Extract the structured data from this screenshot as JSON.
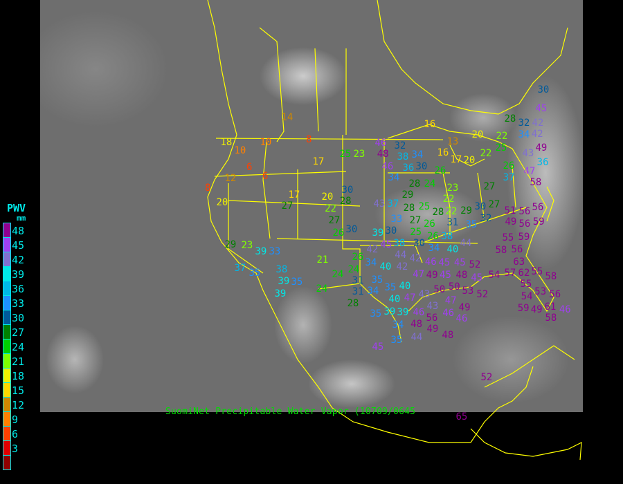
{
  "legend": {
    "title": "PWV",
    "unit": "mm",
    "labels": [
      "48",
      "45",
      "42",
      "39",
      "36",
      "33",
      "30",
      "27",
      "24",
      "21",
      "18",
      "15",
      "12",
      "9",
      "6",
      "3"
    ],
    "colors": [
      "#900090",
      "#a040f0",
      "#8070d0",
      "#00e8e8",
      "#00b8e8",
      "#1e90ff",
      "#005a9a",
      "#008000",
      "#00d000",
      "#80ff00",
      "#f0f000",
      "#ffd700",
      "#d08800",
      "#ff8000",
      "#ff4000",
      "#e00000",
      "#900000"
    ]
  },
  "caption": "SuomiNet Precipitable Water Vapor (10709/0645",
  "border_color": "#ffff00",
  "stations": [
    "14",
    "10",
    "8",
    "18",
    "10",
    "6",
    "6",
    "12",
    "8",
    "20",
    "17",
    "25",
    "23",
    "17",
    "27",
    "30",
    "28",
    "20",
    "22",
    "27",
    "26",
    "30",
    "29",
    "23",
    "39",
    "33",
    "37",
    "35",
    "38",
    "39",
    "35",
    "39",
    "21",
    "24",
    "24",
    "26",
    "24",
    "34",
    "40",
    "31",
    "35",
    "34",
    "31",
    "28",
    "35",
    "40",
    "40",
    "43",
    "39",
    "35",
    "39",
    "34",
    "35",
    "45",
    "46",
    "32",
    "48",
    "46",
    "38",
    "34",
    "36",
    "30",
    "34",
    "26",
    "28",
    "24",
    "29",
    "23",
    "22",
    "43",
    "37",
    "28",
    "25",
    "28",
    "22",
    "33",
    "27",
    "26",
    "25",
    "26",
    "30",
    "34",
    "38",
    "31",
    "35",
    "29",
    "30",
    "27",
    "32",
    "27",
    "26",
    "37",
    "47",
    "58",
    "43",
    "49",
    "20",
    "16",
    "13",
    "16",
    "17",
    "20",
    "22",
    "25",
    "22",
    "30",
    "45",
    "28",
    "32",
    "42",
    "42",
    "34",
    "36",
    "39",
    "30",
    "38",
    "45",
    "44",
    "42",
    "42",
    "46",
    "47",
    "49",
    "45",
    "42",
    "47",
    "45",
    "40",
    "44",
    "45",
    "48",
    "52",
    "50",
    "50",
    "45",
    "47",
    "53",
    "43",
    "46",
    "46",
    "49",
    "56",
    "52",
    "46",
    "48",
    "49",
    "44",
    "48",
    "54",
    "57",
    "62",
    "55",
    "63",
    "58",
    "55",
    "53",
    "54",
    "56",
    "61",
    "49",
    "59",
    "46",
    "58",
    "51",
    "56",
    "56",
    "59",
    "49",
    "56",
    "55",
    "59",
    "58",
    "56",
    "52",
    "65"
  ]
}
